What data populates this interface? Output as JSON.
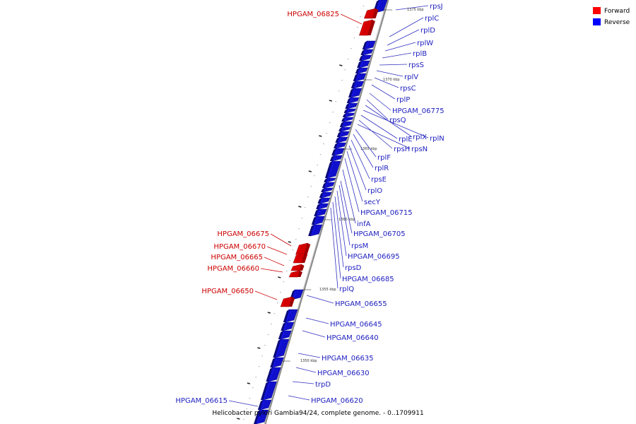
{
  "caption": "Helicobacter pylori Gambia94/24, complete genome. - 0..1709911",
  "legend": [
    {
      "name": "Forward",
      "color": "#ff0000"
    },
    {
      "name": "Reverse",
      "color": "#0000ff"
    }
  ],
  "colors": {
    "forward": "#d40000",
    "reverse": "#1010cc",
    "backbone": "#888888"
  },
  "ticks": [
    "1375 kbp",
    "1370 kbp",
    "1365 kbp",
    "1360 kbp",
    "1355 kbp",
    "1350 kbp"
  ],
  "forward_labels": [
    "HPGAM_06825",
    "HPGAM_06675",
    "HPGAM_06670",
    "HPGAM_06665",
    "HPGAM_06660",
    "HPGAM_06650"
  ],
  "reverse_labels": [
    "rpsJ",
    "rplC",
    "rplD",
    "rplW",
    "rplB",
    "rpsS",
    "rplV",
    "rpsC",
    "rplP",
    "HPGAM_06775",
    "rpsQ",
    "rplX",
    "rplN",
    "rplE",
    "rpsH",
    "rpsN",
    "rplF",
    "rplR",
    "rpsE",
    "rplO",
    "secY",
    "HPGAM_06715",
    "infA",
    "HPGAM_06705",
    "rpsM",
    "HPGAM_06695",
    "rpsD",
    "HPGAM_06685",
    "rplQ",
    "HPGAM_06655",
    "HPGAM_06645",
    "HPGAM_06640",
    "HPGAM_06635",
    "HPGAM_06630",
    "trpD",
    "HPGAM_06620",
    "HPGAM_06615"
  ]
}
